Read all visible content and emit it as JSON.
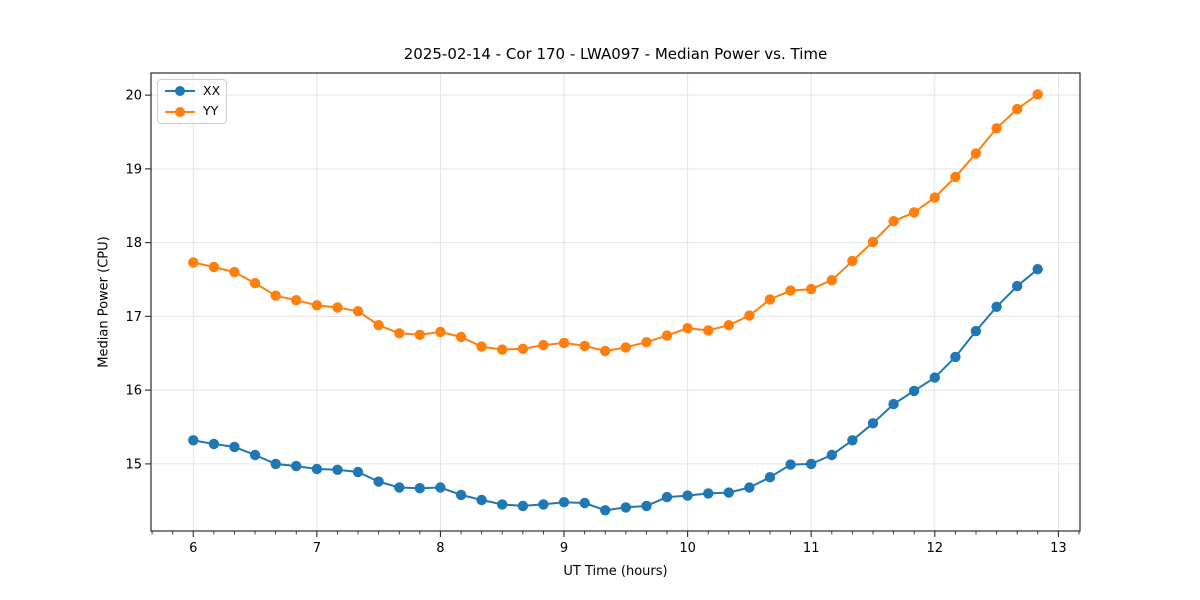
{
  "chart_data": {
    "type": "line",
    "title": "2025-02-14 - Cor 170 - LWA097 - Median Power vs. Time",
    "xlabel": "UT Time (hours)",
    "ylabel": "Median Power (CPU)",
    "xlim": [
      5.658,
      13.175
    ],
    "ylim": [
      14.09,
      20.3
    ],
    "x_ticks": [
      6,
      7,
      8,
      9,
      10,
      11,
      12,
      13
    ],
    "y_ticks": [
      15,
      16,
      17,
      18,
      19,
      20
    ],
    "x_minor_step_hours": 0.1667,
    "grid": true,
    "legend_position": "upper left",
    "x": [
      6.0,
      6.167,
      6.333,
      6.5,
      6.667,
      6.833,
      7.0,
      7.167,
      7.333,
      7.5,
      7.667,
      7.833,
      8.0,
      8.167,
      8.333,
      8.5,
      8.667,
      8.833,
      9.0,
      9.167,
      9.333,
      9.5,
      9.667,
      9.833,
      10.0,
      10.167,
      10.333,
      10.5,
      10.667,
      10.833,
      11.0,
      11.167,
      11.333,
      11.5,
      11.667,
      11.833,
      12.0,
      12.167,
      12.333,
      12.5,
      12.667,
      12.833
    ],
    "series": [
      {
        "name": "XX",
        "color": "#1f77b4",
        "values": [
          15.32,
          15.27,
          15.23,
          15.12,
          15.0,
          14.97,
          14.93,
          14.92,
          14.89,
          14.76,
          14.68,
          14.67,
          14.68,
          14.58,
          14.51,
          14.45,
          14.43,
          14.45,
          14.48,
          14.47,
          14.37,
          14.41,
          14.43,
          14.55,
          14.57,
          14.6,
          14.61,
          14.68,
          14.82,
          14.99,
          15.0,
          15.12,
          15.32,
          15.55,
          15.81,
          15.99,
          16.17,
          16.45,
          16.8,
          17.13,
          17.41,
          17.64
        ]
      },
      {
        "name": "YY",
        "color": "#ff7f0e",
        "values": [
          17.73,
          17.67,
          17.6,
          17.45,
          17.28,
          17.22,
          17.15,
          17.12,
          17.07,
          16.88,
          16.77,
          16.75,
          16.79,
          16.72,
          16.59,
          16.55,
          16.56,
          16.61,
          16.64,
          16.6,
          16.53,
          16.58,
          16.65,
          16.74,
          16.84,
          16.81,
          16.88,
          17.01,
          17.23,
          17.35,
          17.37,
          17.49,
          17.75,
          18.01,
          18.29,
          18.41,
          18.61,
          18.89,
          19.21,
          19.55,
          19.81,
          20.01
        ]
      }
    ],
    "colors": {
      "background": "#ffffff",
      "grid": "#e3e3e3",
      "spine": "#2b2b2b",
      "tick": "#2b2b2b",
      "text": "#000000",
      "legend_border": "#cccccc"
    }
  }
}
